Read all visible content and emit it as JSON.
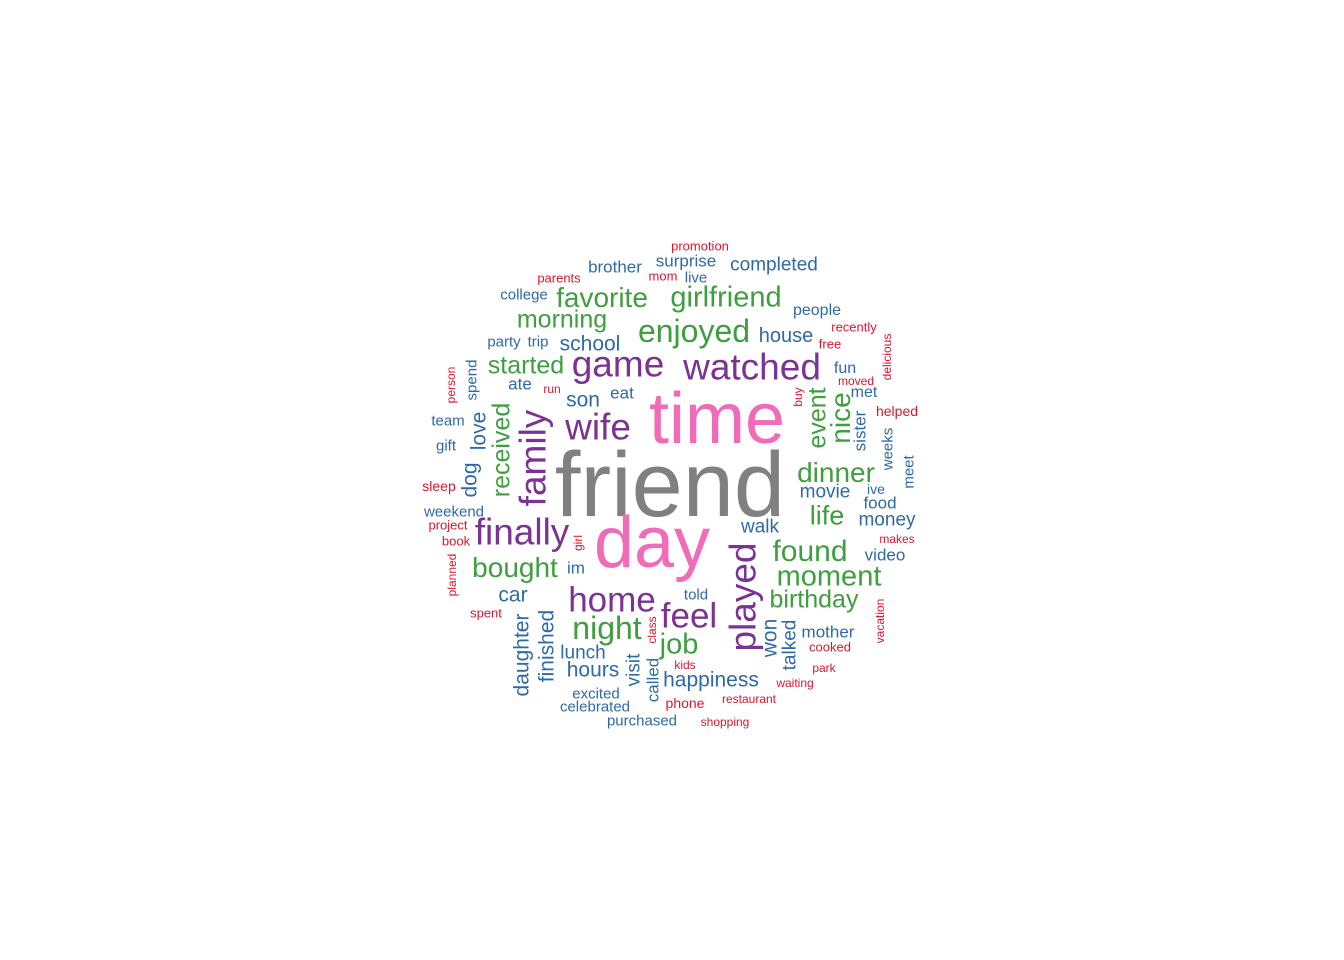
{
  "colors": {
    "gray": "#808080",
    "pink": "#F06BB8",
    "purple": "#7B3294",
    "green": "#3F9E3F",
    "blue": "#2E6AA7",
    "red": "#D7172F"
  },
  "chart_data": {
    "type": "wordcloud",
    "words": [
      {
        "text": "friend",
        "color": "gray",
        "weight": 100
      },
      {
        "text": "time",
        "color": "pink",
        "weight": 80
      },
      {
        "text": "day",
        "color": "pink",
        "weight": 80
      },
      {
        "text": "watched",
        "color": "purple",
        "weight": 45
      },
      {
        "text": "game",
        "color": "purple",
        "weight": 45
      },
      {
        "text": "wife",
        "color": "purple",
        "weight": 45
      },
      {
        "text": "family",
        "color": "purple",
        "weight": 45
      },
      {
        "text": "finally",
        "color": "purple",
        "weight": 45
      },
      {
        "text": "played",
        "color": "purple",
        "weight": 45
      },
      {
        "text": "home",
        "color": "purple",
        "weight": 45
      },
      {
        "text": "feel",
        "color": "purple",
        "weight": 45
      },
      {
        "text": "enjoyed",
        "color": "green",
        "weight": 35
      },
      {
        "text": "girlfriend",
        "color": "green",
        "weight": 33
      },
      {
        "text": "favorite",
        "color": "green",
        "weight": 33
      },
      {
        "text": "morning",
        "color": "green",
        "weight": 30
      },
      {
        "text": "started",
        "color": "green",
        "weight": 30
      },
      {
        "text": "received",
        "color": "green",
        "weight": 30
      },
      {
        "text": "bought",
        "color": "green",
        "weight": 33
      },
      {
        "text": "night",
        "color": "green",
        "weight": 35
      },
      {
        "text": "job",
        "color": "green",
        "weight": 33
      },
      {
        "text": "dinner",
        "color": "green",
        "weight": 33
      },
      {
        "text": "event",
        "color": "green",
        "weight": 30
      },
      {
        "text": "nice",
        "color": "green",
        "weight": 33
      },
      {
        "text": "life",
        "color": "green",
        "weight": 30
      },
      {
        "text": "found",
        "color": "green",
        "weight": 35
      },
      {
        "text": "moment",
        "color": "green",
        "weight": 33
      },
      {
        "text": "birthday",
        "color": "green",
        "weight": 30
      },
      {
        "text": "completed",
        "color": "blue",
        "weight": 20
      },
      {
        "text": "brother",
        "color": "blue",
        "weight": 18
      },
      {
        "text": "surprise",
        "color": "blue",
        "weight": 18
      },
      {
        "text": "live",
        "color": "blue",
        "weight": 16
      },
      {
        "text": "college",
        "color": "blue",
        "weight": 16
      },
      {
        "text": "people",
        "color": "blue",
        "weight": 17
      },
      {
        "text": "house",
        "color": "blue",
        "weight": 22
      },
      {
        "text": "school",
        "color": "blue",
        "weight": 22
      },
      {
        "text": "party",
        "color": "blue",
        "weight": 16
      },
      {
        "text": "trip",
        "color": "blue",
        "weight": 16
      },
      {
        "text": "ate",
        "color": "blue",
        "weight": 18
      },
      {
        "text": "son",
        "color": "blue",
        "weight": 22
      },
      {
        "text": "eat",
        "color": "blue",
        "weight": 18
      },
      {
        "text": "spend",
        "color": "blue",
        "weight": 16
      },
      {
        "text": "team",
        "color": "blue",
        "weight": 16
      },
      {
        "text": "love",
        "color": "blue",
        "weight": 22
      },
      {
        "text": "gift",
        "color": "blue",
        "weight": 16
      },
      {
        "text": "dog",
        "color": "blue",
        "weight": 22
      },
      {
        "text": "fun",
        "color": "blue",
        "weight": 17
      },
      {
        "text": "met",
        "color": "blue",
        "weight": 17
      },
      {
        "text": "sister",
        "color": "blue",
        "weight": 18
      },
      {
        "text": "weeks",
        "color": "blue",
        "weight": 16
      },
      {
        "text": "movie",
        "color": "blue",
        "weight": 20
      },
      {
        "text": "ive",
        "color": "blue",
        "weight": 15
      },
      {
        "text": "food",
        "color": "blue",
        "weight": 18
      },
      {
        "text": "meet",
        "color": "blue",
        "weight": 16
      },
      {
        "text": "money",
        "color": "blue",
        "weight": 20
      },
      {
        "text": "walk",
        "color": "blue",
        "weight": 20
      },
      {
        "text": "weekend",
        "color": "blue",
        "weight": 16
      },
      {
        "text": "video",
        "color": "blue",
        "weight": 18
      },
      {
        "text": "im",
        "color": "blue",
        "weight": 18
      },
      {
        "text": "car",
        "color": "blue",
        "weight": 22
      },
      {
        "text": "told",
        "color": "blue",
        "weight": 16
      },
      {
        "text": "daughter",
        "color": "blue",
        "weight": 22
      },
      {
        "text": "finished",
        "color": "blue",
        "weight": 22
      },
      {
        "text": "lunch",
        "color": "blue",
        "weight": 20
      },
      {
        "text": "hours",
        "color": "blue",
        "weight": 22
      },
      {
        "text": "visit",
        "color": "blue",
        "weight": 20
      },
      {
        "text": "called",
        "color": "blue",
        "weight": 18
      },
      {
        "text": "won",
        "color": "blue",
        "weight": 22
      },
      {
        "text": "talked",
        "color": "blue",
        "weight": 20
      },
      {
        "text": "mother",
        "color": "blue",
        "weight": 18
      },
      {
        "text": "happiness",
        "color": "blue",
        "weight": 22
      },
      {
        "text": "excited",
        "color": "blue",
        "weight": 16
      },
      {
        "text": "celebrated",
        "color": "blue",
        "weight": 16
      },
      {
        "text": "purchased",
        "color": "blue",
        "weight": 16
      },
      {
        "text": "promotion",
        "color": "red",
        "weight": 14
      },
      {
        "text": "parents",
        "color": "red",
        "weight": 14
      },
      {
        "text": "mom",
        "color": "red",
        "weight": 14
      },
      {
        "text": "recently",
        "color": "red",
        "weight": 14
      },
      {
        "text": "free",
        "color": "red",
        "weight": 14
      },
      {
        "text": "delicious",
        "color": "red",
        "weight": 13
      },
      {
        "text": "moved",
        "color": "red",
        "weight": 13
      },
      {
        "text": "person",
        "color": "red",
        "weight": 13
      },
      {
        "text": "run",
        "color": "red",
        "weight": 13
      },
      {
        "text": "buy",
        "color": "red",
        "weight": 13
      },
      {
        "text": "helped",
        "color": "red",
        "weight": 14
      },
      {
        "text": "sleep",
        "color": "red",
        "weight": 14
      },
      {
        "text": "project",
        "color": "red",
        "weight": 14
      },
      {
        "text": "book",
        "color": "red",
        "weight": 14
      },
      {
        "text": "girl",
        "color": "red",
        "weight": 13
      },
      {
        "text": "makes",
        "color": "red",
        "weight": 13
      },
      {
        "text": "planned",
        "color": "red",
        "weight": 13
      },
      {
        "text": "spent",
        "color": "red",
        "weight": 14
      },
      {
        "text": "class",
        "color": "red",
        "weight": 13
      },
      {
        "text": "vacation",
        "color": "red",
        "weight": 13
      },
      {
        "text": "cooked",
        "color": "red",
        "weight": 14
      },
      {
        "text": "kids",
        "color": "red",
        "weight": 13
      },
      {
        "text": "park",
        "color": "red",
        "weight": 13
      },
      {
        "text": "waiting",
        "color": "red",
        "weight": 13
      },
      {
        "text": "phone",
        "color": "red",
        "weight": 15
      },
      {
        "text": "restaurant",
        "color": "red",
        "weight": 13
      },
      {
        "text": "shopping",
        "color": "red",
        "weight": 13
      }
    ]
  }
}
